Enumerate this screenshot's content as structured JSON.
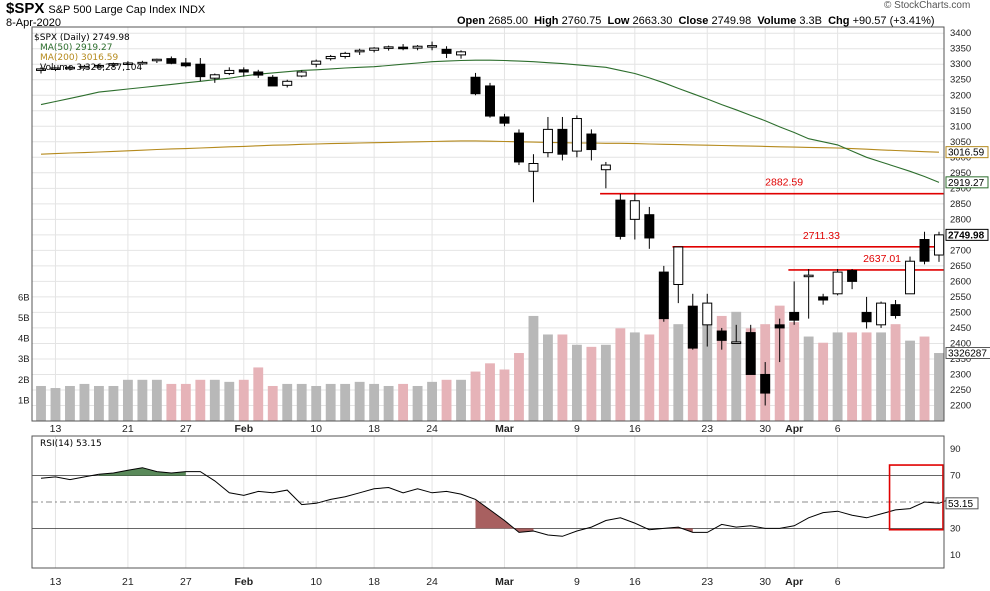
{
  "header": {
    "symbol": "$SPX",
    "name": "S&P 500 Large Cap Index",
    "exchange": "INDX",
    "date": "8-Apr-2020",
    "open_label": "Open",
    "open": "2685.00",
    "high_label": "High",
    "high": "2760.75",
    "low_label": "Low",
    "low": "2663.30",
    "close_label": "Close",
    "close": "2749.98",
    "volume_label": "Volume",
    "volume": "3.3B",
    "chg_label": "Chg",
    "chg": "+90.57 (+3.41%)",
    "brand": "© StockCharts.com"
  },
  "legend": {
    "price": "$SPX (Daily) 2749.98",
    "ma50": "MA(50) 2919.27",
    "ma200": "MA(200) 3016.59",
    "volume": "Volume 3,326,287,104",
    "rsi": "RSI(14) 53.15"
  },
  "colors": {
    "ma50": "#2d6e2d",
    "ma200": "#b58a1d",
    "resistance": "#e00000",
    "vol_up": "#b8b8b8",
    "vol_down": "#e6b3b8",
    "rsi_up_fill": "#5a8a5a",
    "rsi_down_fill": "#a86060"
  },
  "chart_data": {
    "type": "candlestick",
    "title": "$SPX (Daily) 2749.98",
    "ylim": [
      2150,
      3420
    ],
    "y_ticks": [
      2200,
      2250,
      2300,
      2350,
      2400,
      2450,
      2500,
      2550,
      2600,
      2650,
      2700,
      2750,
      2800,
      2850,
      2900,
      2950,
      3000,
      3050,
      3100,
      3150,
      3200,
      3250,
      3300,
      3350,
      3400
    ],
    "volume_ticks": [
      {
        "label": "1B",
        "value": 1
      },
      {
        "label": "2B",
        "value": 2
      },
      {
        "label": "3B",
        "value": 3
      },
      {
        "label": "4B",
        "value": 4
      },
      {
        "label": "5B",
        "value": 5
      },
      {
        "label": "6B",
        "value": 6
      }
    ],
    "x_labels": [
      {
        "i": 1,
        "label": "13",
        "bold": false
      },
      {
        "i": 6,
        "label": "21",
        "bold": false
      },
      {
        "i": 10,
        "label": "27",
        "bold": false
      },
      {
        "i": 14,
        "label": "Feb",
        "bold": true
      },
      {
        "i": 19,
        "label": "10",
        "bold": false
      },
      {
        "i": 23,
        "label": "18",
        "bold": false
      },
      {
        "i": 27,
        "label": "24",
        "bold": false
      },
      {
        "i": 32,
        "label": "Mar",
        "bold": true
      },
      {
        "i": 37,
        "label": "9",
        "bold": false
      },
      {
        "i": 41,
        "label": "16",
        "bold": false
      },
      {
        "i": 46,
        "label": "23",
        "bold": false
      },
      {
        "i": 50,
        "label": "30",
        "bold": false
      },
      {
        "i": 52,
        "label": "Apr",
        "bold": true
      },
      {
        "i": 55,
        "label": "6",
        "bold": false
      }
    ],
    "candles": [
      {
        "o": 3280,
        "h": 3290,
        "l": 3270,
        "c": 3285,
        "v": 1.7
      },
      {
        "o": 3285,
        "h": 3290,
        "l": 3278,
        "c": 3288,
        "v": 1.6
      },
      {
        "o": 3288,
        "h": 3295,
        "l": 3280,
        "c": 3290,
        "v": 1.7
      },
      {
        "o": 3290,
        "h": 3298,
        "l": 3285,
        "c": 3293,
        "v": 1.8
      },
      {
        "o": 3293,
        "h": 3300,
        "l": 3286,
        "c": 3296,
        "v": 1.7
      },
      {
        "o": 3300,
        "h": 3305,
        "l": 3290,
        "c": 3302,
        "v": 1.7
      },
      {
        "o": 3302,
        "h": 3310,
        "l": 3296,
        "c": 3304,
        "v": 2.0
      },
      {
        "o": 3305,
        "h": 3311,
        "l": 3298,
        "c": 3306,
        "v": 2.0
      },
      {
        "o": 3312,
        "h": 3318,
        "l": 3304,
        "c": 3316,
        "v": 2.0
      },
      {
        "o": 3318,
        "h": 3325,
        "l": 3300,
        "c": 3303,
        "v": 1.8
      },
      {
        "o": 3304,
        "h": 3320,
        "l": 3290,
        "c": 3295,
        "v": 1.8
      },
      {
        "o": 3300,
        "h": 3320,
        "l": 3245,
        "c": 3260,
        "v": 2.0
      },
      {
        "o": 3255,
        "h": 3270,
        "l": 3240,
        "c": 3266,
        "v": 2.0
      },
      {
        "o": 3270,
        "h": 3290,
        "l": 3265,
        "c": 3280,
        "v": 1.9
      },
      {
        "o": 3282,
        "h": 3290,
        "l": 3260,
        "c": 3275,
        "v": 2.0
      },
      {
        "o": 3275,
        "h": 3282,
        "l": 3256,
        "c": 3265,
        "v": 2.6
      },
      {
        "o": 3258,
        "h": 3265,
        "l": 3230,
        "c": 3230,
        "v": 1.7
      },
      {
        "o": 3232,
        "h": 3250,
        "l": 3225,
        "c": 3245,
        "v": 1.8
      },
      {
        "o": 3262,
        "h": 3280,
        "l": 3258,
        "c": 3275,
        "v": 1.8
      },
      {
        "o": 3300,
        "h": 3315,
        "l": 3290,
        "c": 3310,
        "v": 1.7
      },
      {
        "o": 3318,
        "h": 3330,
        "l": 3312,
        "c": 3325,
        "v": 1.8
      },
      {
        "o": 3325,
        "h": 3340,
        "l": 3318,
        "c": 3335,
        "v": 1.8
      },
      {
        "o": 3340,
        "h": 3350,
        "l": 3330,
        "c": 3345,
        "v": 1.9
      },
      {
        "o": 3345,
        "h": 3355,
        "l": 3338,
        "c": 3352,
        "v": 1.8
      },
      {
        "o": 3352,
        "h": 3360,
        "l": 3344,
        "c": 3356,
        "v": 1.7
      },
      {
        "o": 3355,
        "h": 3365,
        "l": 3345,
        "c": 3350,
        "v": 1.8
      },
      {
        "o": 3352,
        "h": 3362,
        "l": 3345,
        "c": 3358,
        "v": 1.7
      },
      {
        "o": 3360,
        "h": 3373,
        "l": 3345,
        "c": 3360,
        "v": 1.9
      },
      {
        "o": 3348,
        "h": 3358,
        "l": 3320,
        "c": 3335,
        "v": 2.0
      },
      {
        "o": 3330,
        "h": 3345,
        "l": 3318,
        "c": 3340,
        "v": 2.0
      },
      {
        "o": 3258,
        "h": 3272,
        "l": 3200,
        "c": 3205,
        "v": 2.4
      },
      {
        "o": 3230,
        "h": 3240,
        "l": 3128,
        "c": 3133,
        "v": 2.8
      },
      {
        "o": 3130,
        "h": 3140,
        "l": 3100,
        "c": 3110,
        "v": 2.5
      },
      {
        "o": 3078,
        "h": 3090,
        "l": 2975,
        "c": 2985,
        "v": 3.3
      },
      {
        "o": 2955,
        "h": 3010,
        "l": 2855,
        "c": 2980,
        "v": 5.1
      },
      {
        "o": 3015,
        "h": 3130,
        "l": 3000,
        "c": 3090,
        "v": 4.2
      },
      {
        "o": 3090,
        "h": 3130,
        "l": 2990,
        "c": 3010,
        "v": 4.2
      },
      {
        "o": 3020,
        "h": 3135,
        "l": 3000,
        "c": 3125,
        "v": 3.7
      },
      {
        "o": 3075,
        "h": 3090,
        "l": 2990,
        "c": 3025,
        "v": 3.6
      },
      {
        "o": 2960,
        "h": 2985,
        "l": 2900,
        "c": 2975,
        "v": 3.7
      },
      {
        "o": 2862,
        "h": 2882,
        "l": 2735,
        "c": 2745,
        "v": 4.5
      },
      {
        "o": 2800,
        "h": 2882,
        "l": 2735,
        "c": 2860,
        "v": 4.3
      },
      {
        "o": 2815,
        "h": 2840,
        "l": 2705,
        "c": 2740,
        "v": 4.2
      },
      {
        "o": 2630,
        "h": 2650,
        "l": 2470,
        "c": 2480,
        "v": 5.3
      },
      {
        "o": 2590,
        "h": 2711,
        "l": 2530,
        "c": 2711,
        "v": 4.7
      },
      {
        "o": 2520,
        "h": 2560,
        "l": 2380,
        "c": 2385,
        "v": 5.6
      },
      {
        "o": 2460,
        "h": 2560,
        "l": 2390,
        "c": 2530,
        "v": 4.9
      },
      {
        "o": 2440,
        "h": 2450,
        "l": 2380,
        "c": 2410,
        "v": 5.1
      },
      {
        "o": 2400,
        "h": 2460,
        "l": 2400,
        "c": 2405,
        "v": 5.3
      },
      {
        "o": 2435,
        "h": 2460,
        "l": 2300,
        "c": 2300,
        "v": 4.5
      },
      {
        "o": 2300,
        "h": 2340,
        "l": 2200,
        "c": 2240,
        "v": 4.7
      },
      {
        "o": 2460,
        "h": 2480,
        "l": 2340,
        "c": 2450,
        "v": 5.6
      },
      {
        "o": 2500,
        "h": 2600,
        "l": 2460,
        "c": 2475,
        "v": 4.8
      },
      {
        "o": 2620,
        "h": 2640,
        "l": 2480,
        "c": 2620,
        "v": 4.1
      },
      {
        "o": 2550,
        "h": 2560,
        "l": 2525,
        "c": 2540,
        "v": 3.8
      },
      {
        "o": 2560,
        "h": 2640,
        "l": 2555,
        "c": 2630,
        "v": 4.3
      },
      {
        "o": 2635,
        "h": 2640,
        "l": 2575,
        "c": 2600,
        "v": 4.3
      },
      {
        "o": 2500,
        "h": 2550,
        "l": 2448,
        "c": 2470,
        "v": 4.3
      },
      {
        "o": 2460,
        "h": 2535,
        "l": 2450,
        "c": 2530,
        "v": 4.3
      },
      {
        "o": 2525,
        "h": 2540,
        "l": 2480,
        "c": 2490,
        "v": 4.7
      },
      {
        "o": 2560,
        "h": 2680,
        "l": 2560,
        "c": 2665,
        "v": 3.9
      },
      {
        "o": 2735,
        "h": 2760,
        "l": 2655,
        "c": 2665,
        "v": 4.1
      },
      {
        "o": 2685,
        "h": 2760,
        "l": 2663,
        "c": 2750,
        "v": 3.3
      }
    ],
    "ma50": [
      3170,
      3180,
      3190,
      3200,
      3210,
      3215,
      3220,
      3225,
      3230,
      3235,
      3240,
      3245,
      3250,
      3255,
      3262,
      3268,
      3272,
      3276,
      3280,
      3282,
      3285,
      3288,
      3290,
      3292,
      3296,
      3300,
      3304,
      3308,
      3310,
      3312,
      3313,
      3313,
      3312,
      3310,
      3308,
      3305,
      3302,
      3298,
      3294,
      3290,
      3280,
      3270,
      3256,
      3240,
      3222,
      3205,
      3188,
      3170,
      3153,
      3135,
      3118,
      3098,
      3080,
      3060,
      3050,
      3040,
      3020,
      3000,
      2985,
      2970,
      2955,
      2938,
      2919
    ],
    "ma200": [
      3010,
      3012,
      3014,
      3015,
      3017,
      3019,
      3021,
      3023,
      3025,
      3027,
      3028,
      3030,
      3032,
      3034,
      3035,
      3037,
      3039,
      3040,
      3042,
      3043,
      3044,
      3045,
      3046,
      3047,
      3048,
      3049,
      3050,
      3051,
      3052,
      3053,
      3053,
      3052,
      3051,
      3050,
      3049,
      3048,
      3047,
      3046,
      3046,
      3045,
      3045,
      3044,
      3043,
      3042,
      3041,
      3040,
      3039,
      3038,
      3037,
      3036,
      3035,
      3034,
      3033,
      3032,
      3031,
      3030,
      3028,
      3026,
      3024,
      3022,
      3020,
      3018,
      3016.59
    ],
    "resistance": [
      {
        "value": 2882.59,
        "label": "2882.59",
        "from": 39
      },
      {
        "value": 2711.33,
        "label": "2711.33",
        "from": 44
      },
      {
        "value": 2637.01,
        "label": "2637.01",
        "from": 52
      }
    ],
    "price_tags": [
      {
        "label": "3016.59",
        "value": 3016.59,
        "style": "ma200"
      },
      {
        "label": "2919.27",
        "value": 2919.27,
        "style": "ma50"
      },
      {
        "label": "2749.98",
        "value": 2749.98,
        "style": "last"
      }
    ],
    "volume_tag": "3326287",
    "rsi": {
      "ylim": [
        0,
        100
      ],
      "ticks": [
        10,
        30,
        50,
        70,
        90
      ],
      "upper": 70,
      "lower": 30,
      "last_label": "53.15",
      "values": [
        68,
        69,
        67,
        69,
        71,
        72,
        74,
        76,
        73,
        72,
        73,
        73,
        66,
        57,
        55,
        58,
        57,
        59,
        48,
        49,
        52,
        54,
        57,
        60,
        61,
        57,
        60,
        57,
        58,
        56,
        52,
        44,
        36,
        27,
        28,
        25,
        24,
        28,
        31,
        36,
        38,
        34,
        29,
        30,
        31,
        27,
        27,
        33,
        31,
        32,
        30,
        30,
        32,
        38,
        42,
        43,
        40,
        38,
        41,
        44,
        45,
        50,
        49,
        53.15
      ],
      "fill_up": [
        [
          4,
          10
        ]
      ],
      "fill_down": [
        [
          30,
          34
        ],
        [
          43,
          45
        ]
      ]
    }
  }
}
